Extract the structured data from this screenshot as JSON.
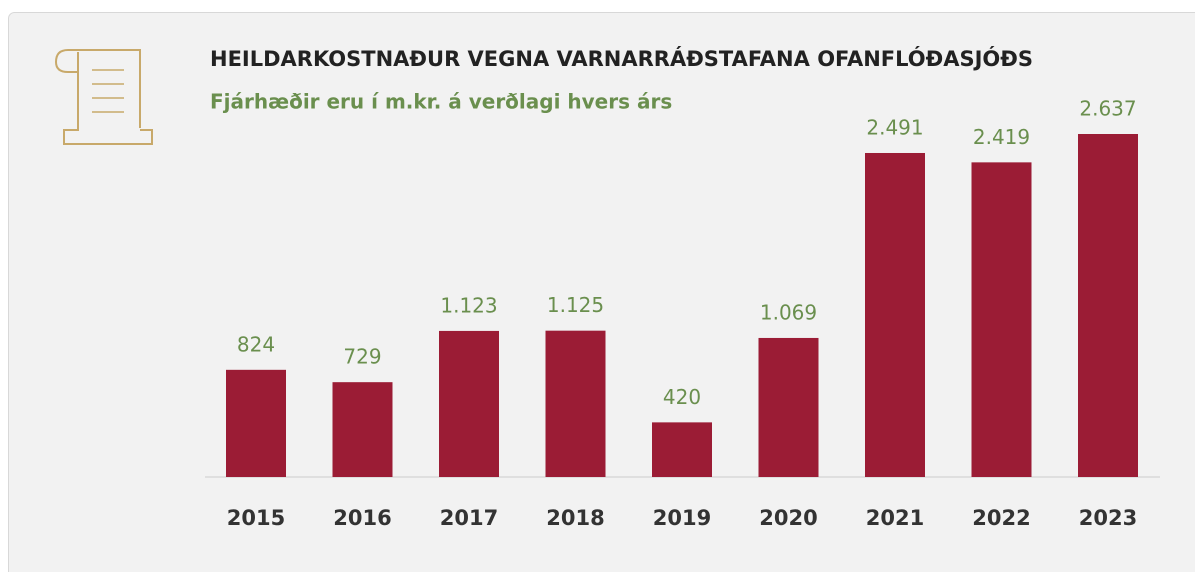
{
  "chart_data": {
    "type": "bar",
    "title": "HEILDARKOSTNAÐUR VEGNA VARNARRÁÐSTAFANA OFANFLÓÐASJÓÐS",
    "subtitle": "Fjárhæðir eru í m.kr. á verðlagi hvers árs",
    "categories": [
      "2015",
      "2016",
      "2017",
      "2018",
      "2019",
      "2020",
      "2021",
      "2022",
      "2023"
    ],
    "values": [
      824,
      729,
      1123,
      1125,
      420,
      1069,
      2491,
      2419,
      2637
    ],
    "value_labels": [
      "824",
      "729",
      "1.123",
      "1.125",
      "420",
      "1.069",
      "2.491",
      "2.419",
      "2.637"
    ],
    "color": "#9b1c35",
    "label_color": "#6a8f4e"
  }
}
